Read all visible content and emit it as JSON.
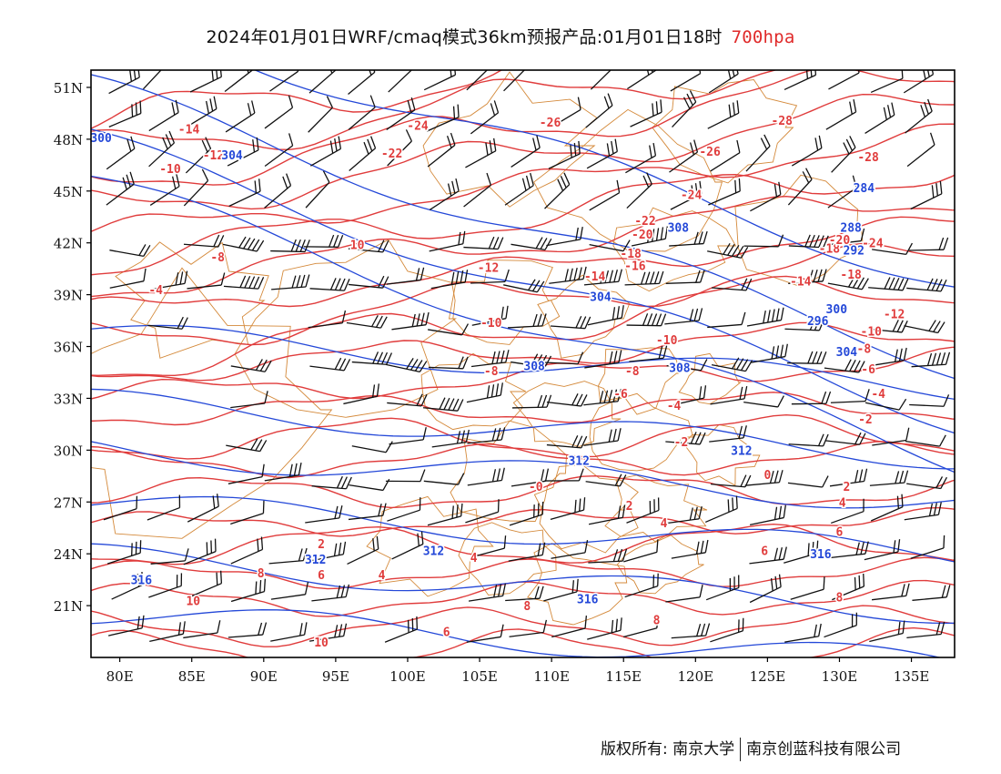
{
  "title": {
    "main": "2024年01月01日WRF/cmaq模式36km预报产品:01月01日18时",
    "level": "700hpa",
    "level_color": "#e02a2a"
  },
  "axes": {
    "lat_labels": [
      "51N",
      "48N",
      "45N",
      "42N",
      "39N",
      "36N",
      "33N",
      "30N",
      "27N",
      "24N",
      "21N"
    ],
    "lat_values": [
      51,
      48,
      45,
      42,
      39,
      36,
      33,
      30,
      27,
      24,
      21
    ],
    "lon_labels": [
      "80E",
      "85E",
      "90E",
      "95E",
      "100E",
      "105E",
      "110E",
      "115E",
      "120E",
      "125E",
      "130E",
      "135E"
    ],
    "lon_values": [
      80,
      85,
      90,
      95,
      100,
      105,
      110,
      115,
      120,
      125,
      130,
      135
    ],
    "lon_range": [
      78,
      138
    ],
    "lat_range": [
      18,
      52
    ]
  },
  "colors": {
    "temperature": "#e03c3c",
    "geopotential": "#2448d8",
    "borders": "#d4893a",
    "wind_barbs": "#111111"
  },
  "temperature_labels": [
    {
      "text": "-14",
      "lon": 84.8,
      "lat": 48.6
    },
    {
      "text": "-12",
      "lon": 86.5,
      "lat": 47.1
    },
    {
      "text": "-10",
      "lon": 83.5,
      "lat": 46.3
    },
    {
      "text": "-24",
      "lon": 100.7,
      "lat": 48.8
    },
    {
      "text": "-22",
      "lon": 98.9,
      "lat": 47.2
    },
    {
      "text": "-26",
      "lon": 109.9,
      "lat": 49.0
    },
    {
      "text": "-26",
      "lon": 121.0,
      "lat": 47.3
    },
    {
      "text": "-28",
      "lon": 126.0,
      "lat": 49.1
    },
    {
      "text": "-28",
      "lon": 132.0,
      "lat": 47.0
    },
    {
      "text": "-8",
      "lon": 86.8,
      "lat": 41.2
    },
    {
      "text": "10",
      "lon": 96.5,
      "lat": 41.9
    },
    {
      "text": "-4",
      "lon": 82.5,
      "lat": 39.3
    },
    {
      "text": "-12",
      "lon": 105.6,
      "lat": 40.6
    },
    {
      "text": "-24",
      "lon": 119.7,
      "lat": 44.8
    },
    {
      "text": "-22",
      "lon": 116.5,
      "lat": 43.3
    },
    {
      "text": "-20",
      "lon": 116.3,
      "lat": 42.5
    },
    {
      "text": "-18",
      "lon": 115.5,
      "lat": 41.4
    },
    {
      "text": "-16",
      "lon": 115.8,
      "lat": 40.7
    },
    {
      "text": "-14",
      "lon": 113.0,
      "lat": 40.1
    },
    {
      "text": "-14",
      "lon": 127.3,
      "lat": 39.8
    },
    {
      "text": "-18",
      "lon": 129.3,
      "lat": 41.7
    },
    {
      "text": "-20",
      "lon": 130.0,
      "lat": 42.2
    },
    {
      "text": "-24",
      "lon": 132.3,
      "lat": 42.0
    },
    {
      "text": "-18",
      "lon": 130.8,
      "lat": 40.2
    },
    {
      "text": "-10",
      "lon": 105.8,
      "lat": 37.4
    },
    {
      "text": "-12",
      "lon": 133.8,
      "lat": 37.9
    },
    {
      "text": "-10",
      "lon": 132.2,
      "lat": 36.9
    },
    {
      "text": "-10",
      "lon": 118.0,
      "lat": 36.4
    },
    {
      "text": "-8",
      "lon": 131.7,
      "lat": 35.9
    },
    {
      "text": "-8",
      "lon": 105.8,
      "lat": 34.6
    },
    {
      "text": "-8",
      "lon": 115.6,
      "lat": 34.6
    },
    {
      "text": "-6",
      "lon": 114.8,
      "lat": 33.3
    },
    {
      "text": "-6",
      "lon": 132.0,
      "lat": 34.7
    },
    {
      "text": "-4",
      "lon": 132.7,
      "lat": 33.3
    },
    {
      "text": "-4",
      "lon": 118.5,
      "lat": 32.6
    },
    {
      "text": "-2",
      "lon": 131.8,
      "lat": 31.8
    },
    {
      "text": "-2",
      "lon": 119.0,
      "lat": 30.5
    },
    {
      "text": "0",
      "lon": 125.0,
      "lat": 28.6
    },
    {
      "text": "2",
      "lon": 130.5,
      "lat": 27.9
    },
    {
      "text": "2",
      "lon": 115.4,
      "lat": 26.8
    },
    {
      "text": "4",
      "lon": 130.2,
      "lat": 27.0
    },
    {
      "text": "4",
      "lon": 117.8,
      "lat": 25.8
    },
    {
      "text": "6",
      "lon": 130.0,
      "lat": 25.3
    },
    {
      "text": "6",
      "lon": 124.8,
      "lat": 24.2
    },
    {
      "text": "2",
      "lon": 94.0,
      "lat": 24.6
    },
    {
      "text": "4",
      "lon": 98.2,
      "lat": 22.8
    },
    {
      "text": "4",
      "lon": 104.6,
      "lat": 23.8
    },
    {
      "text": "6",
      "lon": 94.0,
      "lat": 22.8
    },
    {
      "text": "8",
      "lon": 89.8,
      "lat": 22.9
    },
    {
      "text": "10",
      "lon": 85.1,
      "lat": 21.3
    },
    {
      "text": "10",
      "lon": 94.0,
      "lat": 18.9
    },
    {
      "text": "6",
      "lon": 102.7,
      "lat": 19.5
    },
    {
      "text": "8",
      "lon": 108.3,
      "lat": 21.0
    },
    {
      "text": "8",
      "lon": 117.3,
      "lat": 20.2
    },
    {
      "text": "8",
      "lon": 130.0,
      "lat": 21.5
    },
    {
      "text": "-0",
      "lon": 108.9,
      "lat": 27.9
    }
  ],
  "height_labels": [
    {
      "text": "300",
      "lon": 78.7,
      "lat": 48.1
    },
    {
      "text": "304",
      "lon": 87.8,
      "lat": 47.1
    },
    {
      "text": "308",
      "lon": 118.8,
      "lat": 42.9
    },
    {
      "text": "304",
      "lon": 113.4,
      "lat": 38.9
    },
    {
      "text": "308",
      "lon": 108.8,
      "lat": 34.9
    },
    {
      "text": "308",
      "lon": 118.9,
      "lat": 34.8
    },
    {
      "text": "300",
      "lon": 129.8,
      "lat": 38.2
    },
    {
      "text": "312",
      "lon": 123.2,
      "lat": 30.0
    },
    {
      "text": "312",
      "lon": 111.9,
      "lat": 29.4
    },
    {
      "text": "312",
      "lon": 93.6,
      "lat": 23.7
    },
    {
      "text": "312",
      "lon": 101.8,
      "lat": 24.2
    },
    {
      "text": "316",
      "lon": 81.5,
      "lat": 22.5
    },
    {
      "text": "316",
      "lon": 112.5,
      "lat": 21.4
    },
    {
      "text": "316",
      "lon": 128.7,
      "lat": 24.0
    },
    {
      "text": "284",
      "lon": 131.7,
      "lat": 45.2
    },
    {
      "text": "288",
      "lon": 130.8,
      "lat": 42.9
    },
    {
      "text": "292",
      "lon": 131.0,
      "lat": 41.6
    },
    {
      "text": "296",
      "lon": 128.5,
      "lat": 37.5
    },
    {
      "text": "304",
      "lon": 130.5,
      "lat": 35.7
    }
  ],
  "credit": {
    "left": "版权所有: 南京大学",
    "right": "南京创蓝科技有限公司"
  }
}
